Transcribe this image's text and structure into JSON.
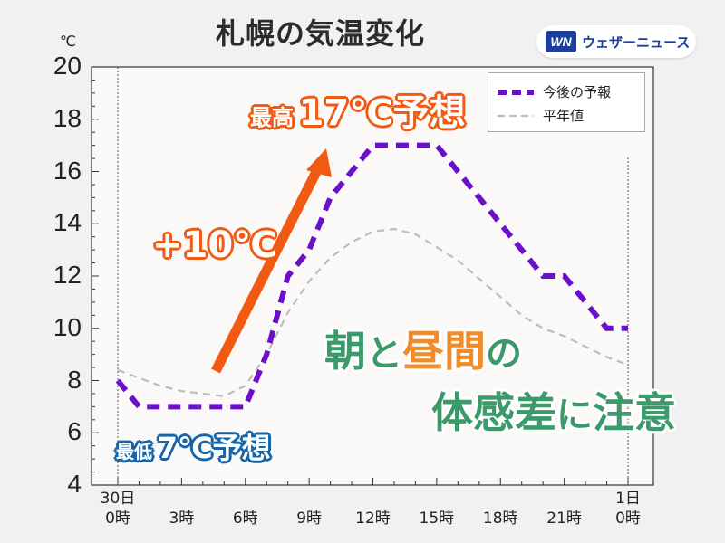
{
  "title": "札幌の気温変化",
  "brand": {
    "logo": "WN",
    "name": "ウェザーニュース"
  },
  "unit": "℃",
  "legend": {
    "forecast_label": "今後の予報",
    "normal_label": "平年値"
  },
  "annotations": {
    "max_prefix": "最高",
    "max_value": "17℃予想",
    "min_prefix": "最低",
    "min_value": "7℃予想",
    "rise": "+10℃",
    "warning_line1_a": "朝",
    "warning_line1_b": "と",
    "warning_line1_c": "昼間",
    "warning_line1_d": "の",
    "warning_line2_a": "体感差",
    "warning_line2_b": "に",
    "warning_line2_c": "注意"
  },
  "colors": {
    "forecast": "#6b10c9",
    "normal": "#bdbdbd",
    "arrow": "#f05a12",
    "warning_green": "#3a9a6a",
    "warning_orange": "#f08c2a"
  },
  "chart_data": {
    "type": "line",
    "title": "札幌の気温変化",
    "ylabel": "℃",
    "ylim": [
      4,
      20
    ],
    "yticks": [
      "4",
      "6",
      "8",
      "10",
      "12",
      "14",
      "16",
      "18",
      "20"
    ],
    "xlim": [
      0,
      24
    ],
    "xticks": [
      {
        "x": 0,
        "line1": "30日",
        "line2": "0時"
      },
      {
        "x": 3,
        "line1": "",
        "line2": "3時"
      },
      {
        "x": 6,
        "line1": "",
        "line2": "6時"
      },
      {
        "x": 9,
        "line1": "",
        "line2": "9時"
      },
      {
        "x": 12,
        "line1": "",
        "line2": "12時"
      },
      {
        "x": 15,
        "line1": "",
        "line2": "15時"
      },
      {
        "x": 18,
        "line1": "",
        "line2": "18時"
      },
      {
        "x": 21,
        "line1": "",
        "line2": "21時"
      },
      {
        "x": 24,
        "line1": "1日",
        "line2": "0時"
      }
    ],
    "series": [
      {
        "name": "今後の予報",
        "x": [
          0,
          1,
          2,
          3,
          4,
          5,
          6,
          7,
          8,
          9,
          10,
          11,
          12,
          13,
          14,
          15,
          16,
          17,
          18,
          19,
          20,
          21,
          22,
          23,
          24
        ],
        "values": [
          8,
          7,
          7,
          7,
          7,
          7,
          7,
          9,
          12,
          13,
          15,
          16,
          17,
          17,
          17,
          17,
          16,
          15,
          14,
          13,
          12,
          12,
          11,
          10,
          10
        ]
      },
      {
        "name": "平年値",
        "x": [
          0,
          1,
          2,
          3,
          4,
          5,
          6,
          7,
          8,
          9,
          10,
          11,
          12,
          13,
          14,
          15,
          16,
          17,
          18,
          19,
          20,
          21,
          22,
          23,
          24
        ],
        "values": [
          8.4,
          8.1,
          7.8,
          7.6,
          7.5,
          7.4,
          7.8,
          9.0,
          10.6,
          11.8,
          12.7,
          13.3,
          13.7,
          13.8,
          13.6,
          13.1,
          12.6,
          11.9,
          11.2,
          10.5,
          10.0,
          9.7,
          9.3,
          8.9,
          8.6
        ]
      }
    ],
    "grid": false,
    "legend_position": "top-right"
  }
}
